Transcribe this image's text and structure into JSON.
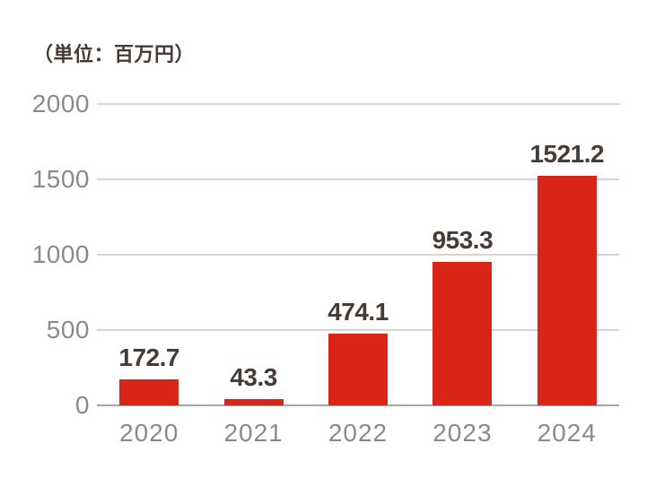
{
  "chart": {
    "unit_label": "（単位：百万円）"
  },
  "chart_data": {
    "type": "bar",
    "title": "",
    "unit_label": "（単位：百万円）",
    "categories": [
      "2020",
      "2021",
      "2022",
      "2023",
      "2024"
    ],
    "values": [
      172.7,
      43.3,
      474.1,
      953.3,
      1521.2
    ],
    "value_labels": [
      "172.7",
      "43.3",
      "474.1",
      "953.3",
      "1521.2"
    ],
    "xlabel": "",
    "ylabel": "",
    "ylim": [
      0,
      2000
    ],
    "yticks": [
      0,
      500,
      1000,
      1500,
      2000
    ],
    "ytick_labels": [
      "0",
      "500",
      "1000",
      "1500",
      "2000"
    ],
    "grid": true,
    "legend": false,
    "colors": {
      "bar": "#d92418",
      "value_label": "#473b37",
      "axis_tick_label": "#8a8a8a",
      "gridline": "#d4d4d4",
      "axis_line": "#a5a5a5",
      "background": "#ffffff"
    }
  }
}
